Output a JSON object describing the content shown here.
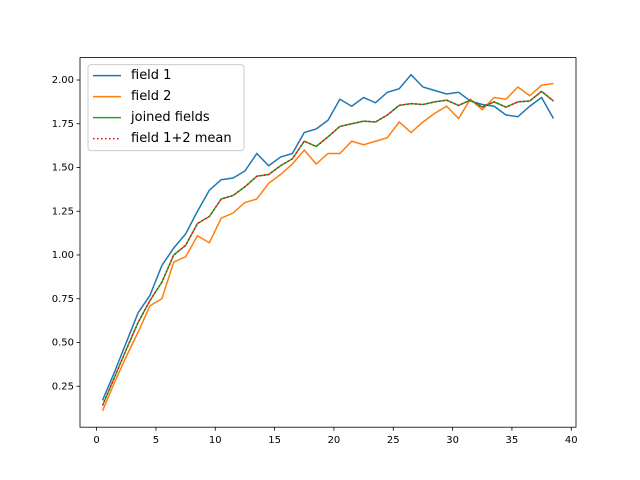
{
  "chart_data": {
    "type": "line",
    "x": [
      0.5,
      1.5,
      2.5,
      3.5,
      4.5,
      5.5,
      6.5,
      7.5,
      8.5,
      9.5,
      10.5,
      11.5,
      12.5,
      13.5,
      14.5,
      15.5,
      16.5,
      17.5,
      18.5,
      19.5,
      20.5,
      21.5,
      22.5,
      23.5,
      24.5,
      25.5,
      26.5,
      27.5,
      28.5,
      29.5,
      30.5,
      31.5,
      32.5,
      33.5,
      34.5,
      35.5,
      36.5,
      37.5,
      38.5
    ],
    "series": [
      {
        "name": "field 1",
        "color": "#1f77b4",
        "linestyle": "solid",
        "values": [
          0.17,
          0.33,
          0.5,
          0.67,
          0.77,
          0.94,
          1.04,
          1.12,
          1.25,
          1.37,
          1.43,
          1.44,
          1.48,
          1.58,
          1.51,
          1.56,
          1.58,
          1.7,
          1.72,
          1.77,
          1.89,
          1.85,
          1.9,
          1.87,
          1.93,
          1.95,
          2.03,
          1.96,
          1.94,
          1.92,
          1.93,
          1.88,
          1.86,
          1.85,
          1.8,
          1.79,
          1.85,
          1.9,
          1.78
        ]
      },
      {
        "name": "field 2",
        "color": "#ff7f0e",
        "linestyle": "solid",
        "values": [
          0.11,
          0.27,
          0.42,
          0.56,
          0.71,
          0.75,
          0.96,
          0.99,
          1.11,
          1.07,
          1.21,
          1.24,
          1.3,
          1.32,
          1.41,
          1.46,
          1.52,
          1.6,
          1.52,
          1.58,
          1.58,
          1.65,
          1.63,
          1.65,
          1.67,
          1.76,
          1.7,
          1.76,
          1.81,
          1.85,
          1.78,
          1.89,
          1.83,
          1.9,
          1.89,
          1.96,
          1.91,
          1.97,
          1.98
        ]
      },
      {
        "name": "joined fields",
        "color": "#2ca02c",
        "linestyle": "solid",
        "values": [
          0.14,
          0.3,
          0.46,
          0.615,
          0.74,
          0.845,
          1.0,
          1.055,
          1.18,
          1.22,
          1.32,
          1.34,
          1.39,
          1.45,
          1.46,
          1.51,
          1.55,
          1.65,
          1.62,
          1.675,
          1.735,
          1.75,
          1.765,
          1.76,
          1.8,
          1.855,
          1.865,
          1.86,
          1.875,
          1.885,
          1.855,
          1.885,
          1.845,
          1.875,
          1.845,
          1.875,
          1.88,
          1.935,
          1.88
        ]
      },
      {
        "name": "field 1+2 mean",
        "color": "#ff0000",
        "linestyle": "dotted",
        "values": [
          0.14,
          0.3,
          0.46,
          0.615,
          0.74,
          0.845,
          1.0,
          1.055,
          1.18,
          1.22,
          1.32,
          1.34,
          1.39,
          1.45,
          1.46,
          1.51,
          1.55,
          1.65,
          1.62,
          1.675,
          1.735,
          1.75,
          1.765,
          1.76,
          1.8,
          1.855,
          1.865,
          1.86,
          1.875,
          1.885,
          1.855,
          1.885,
          1.845,
          1.875,
          1.845,
          1.875,
          1.88,
          1.935,
          1.88
        ]
      }
    ],
    "xlim": [
      -1.4,
      40.4
    ],
    "xticks": [
      0,
      5,
      10,
      15,
      20,
      25,
      30,
      35,
      40
    ],
    "ylim": [
      0.016,
      2.128
    ],
    "yticks": [
      0.25,
      {
        "value": 0.5,
        "label": "0.50"
      },
      0.75,
      {
        "value": 1.0,
        "label": "1.00"
      },
      1.25,
      {
        "value": 1.5,
        "label": "1.50"
      },
      1.75,
      {
        "value": 2.0,
        "label": "2.00"
      }
    ],
    "legend": "upper left"
  }
}
